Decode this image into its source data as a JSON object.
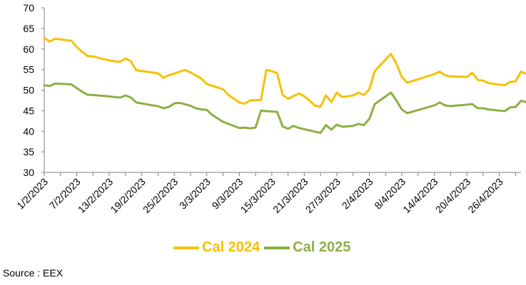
{
  "chart_data": {
    "type": "line",
    "title": "",
    "xlabel": "",
    "ylabel": "",
    "ylim": [
      30,
      70
    ],
    "yticks": [
      30,
      35,
      40,
      45,
      50,
      55,
      60,
      65,
      70
    ],
    "grid": false,
    "legend_position": "bottom",
    "x_tick_labels": [
      "1/2/2023",
      "7/2/2023",
      "13/2/2023",
      "19/2/2023",
      "25/2/2023",
      "3/3/2023",
      "9/3/2023",
      "15/3/2023",
      "21/3/2023",
      "27/3/2023",
      "2/4/2023",
      "8/4/2023",
      "14/4/2023",
      "20/4/2023",
      "26/4/2023"
    ],
    "x_range": [
      "2023-02-01",
      "2023-04-30"
    ],
    "series": [
      {
        "name": "Cal 2024",
        "color": "#F5C200",
        "points": [
          [
            "2023-02-01",
            62.7
          ],
          [
            "2023-02-02",
            61.8
          ],
          [
            "2023-02-03",
            62.5
          ],
          [
            "2023-02-06",
            62.0
          ],
          [
            "2023-02-07",
            60.5
          ],
          [
            "2023-02-08",
            59.3
          ],
          [
            "2023-02-09",
            58.3
          ],
          [
            "2023-02-10",
            58.2
          ],
          [
            "2023-02-13",
            57.2
          ],
          [
            "2023-02-14",
            57.0
          ],
          [
            "2023-02-15",
            56.9
          ],
          [
            "2023-02-16",
            57.7
          ],
          [
            "2023-02-17",
            57.0
          ],
          [
            "2023-02-18",
            54.8
          ],
          [
            "2023-02-21",
            54.3
          ],
          [
            "2023-02-22",
            54.1
          ],
          [
            "2023-02-23",
            53.0
          ],
          [
            "2023-02-24",
            53.6
          ],
          [
            "2023-02-27",
            54.9
          ],
          [
            "2023-02-28",
            54.3
          ],
          [
            "2023-03-01",
            53.6
          ],
          [
            "2023-03-02",
            52.8
          ],
          [
            "2023-03-03",
            51.5
          ],
          [
            "2023-03-06",
            50.2
          ],
          [
            "2023-03-07",
            48.8
          ],
          [
            "2023-03-09",
            47.0
          ],
          [
            "2023-03-10",
            46.7
          ],
          [
            "2023-03-11",
            47.5
          ],
          [
            "2023-03-13",
            47.6
          ],
          [
            "2023-03-14",
            54.9
          ],
          [
            "2023-03-15",
            54.6
          ],
          [
            "2023-03-16",
            54.1
          ],
          [
            "2023-03-17",
            48.8
          ],
          [
            "2023-03-18",
            47.9
          ],
          [
            "2023-03-20",
            49.2
          ],
          [
            "2023-03-21",
            48.5
          ],
          [
            "2023-03-22",
            47.4
          ],
          [
            "2023-03-23",
            46.2
          ],
          [
            "2023-03-24",
            46.0
          ],
          [
            "2023-03-25",
            48.7
          ],
          [
            "2023-03-26",
            47.1
          ],
          [
            "2023-03-27",
            49.4
          ],
          [
            "2023-03-28",
            48.3
          ],
          [
            "2023-03-30",
            48.7
          ],
          [
            "2023-03-31",
            49.4
          ],
          [
            "2023-04-01",
            48.8
          ],
          [
            "2023-04-02",
            50.2
          ],
          [
            "2023-04-03",
            54.6
          ],
          [
            "2023-04-06",
            58.8
          ],
          [
            "2023-04-07",
            56.5
          ],
          [
            "2023-04-08",
            53.2
          ],
          [
            "2023-04-09",
            51.8
          ],
          [
            "2023-04-14",
            53.9
          ],
          [
            "2023-04-15",
            54.5
          ],
          [
            "2023-04-16",
            53.6
          ],
          [
            "2023-04-17",
            53.3
          ],
          [
            "2023-04-18",
            53.3
          ],
          [
            "2023-04-20",
            53.2
          ],
          [
            "2023-04-21",
            54.2
          ],
          [
            "2023-04-22",
            52.5
          ],
          [
            "2023-04-23",
            52.3
          ],
          [
            "2023-04-24",
            51.7
          ],
          [
            "2023-04-27",
            51.2
          ],
          [
            "2023-04-28",
            52.0
          ],
          [
            "2023-04-29",
            52.1
          ],
          [
            "2023-04-30",
            54.5
          ],
          [
            "2023-04-31",
            53.9
          ]
        ]
      },
      {
        "name": "Cal 2025",
        "color": "#8CB043",
        "points": [
          [
            "2023-02-01",
            51.2
          ],
          [
            "2023-02-02",
            51.0
          ],
          [
            "2023-02-03",
            51.6
          ],
          [
            "2023-02-06",
            51.4
          ],
          [
            "2023-02-07",
            50.5
          ],
          [
            "2023-02-08",
            49.6
          ],
          [
            "2023-02-09",
            48.9
          ],
          [
            "2023-02-10",
            48.8
          ],
          [
            "2023-02-13",
            48.5
          ],
          [
            "2023-02-14",
            48.3
          ],
          [
            "2023-02-15",
            48.2
          ],
          [
            "2023-02-16",
            48.7
          ],
          [
            "2023-02-17",
            48.2
          ],
          [
            "2023-02-18",
            47.0
          ],
          [
            "2023-02-21",
            46.3
          ],
          [
            "2023-02-22",
            46.1
          ],
          [
            "2023-02-23",
            45.6
          ],
          [
            "2023-02-24",
            45.9
          ],
          [
            "2023-02-25",
            46.8
          ],
          [
            "2023-02-26",
            46.9
          ],
          [
            "2023-02-28",
            46.2
          ],
          [
            "2023-03-01",
            45.6
          ],
          [
            "2023-03-02",
            45.3
          ],
          [
            "2023-03-03",
            45.2
          ],
          [
            "2023-03-04",
            44.0
          ],
          [
            "2023-03-06",
            42.3
          ],
          [
            "2023-03-09",
            40.8
          ],
          [
            "2023-03-10",
            40.9
          ],
          [
            "2023-03-11",
            40.7
          ],
          [
            "2023-03-12",
            40.9
          ],
          [
            "2023-03-13",
            45.0
          ],
          [
            "2023-03-16",
            44.7
          ],
          [
            "2023-03-17",
            41.2
          ],
          [
            "2023-03-18",
            40.6
          ],
          [
            "2023-03-19",
            41.3
          ],
          [
            "2023-03-20",
            40.8
          ],
          [
            "2023-03-22",
            40.2
          ],
          [
            "2023-03-24",
            39.6
          ],
          [
            "2023-03-25",
            41.5
          ],
          [
            "2023-03-26",
            40.4
          ],
          [
            "2023-03-27",
            41.6
          ],
          [
            "2023-03-28",
            41.1
          ],
          [
            "2023-03-30",
            41.3
          ],
          [
            "2023-03-31",
            41.8
          ],
          [
            "2023-04-01",
            41.5
          ],
          [
            "2023-04-02",
            43.0
          ],
          [
            "2023-04-03",
            46.6
          ],
          [
            "2023-04-06",
            49.4
          ],
          [
            "2023-04-07",
            47.5
          ],
          [
            "2023-04-08",
            45.3
          ],
          [
            "2023-04-09",
            44.4
          ],
          [
            "2023-04-14",
            46.3
          ],
          [
            "2023-04-15",
            47.0
          ],
          [
            "2023-04-16",
            46.3
          ],
          [
            "2023-04-17",
            46.1
          ],
          [
            "2023-04-21",
            46.6
          ],
          [
            "2023-04-22",
            45.6
          ],
          [
            "2023-04-23",
            45.6
          ],
          [
            "2023-04-24",
            45.3
          ],
          [
            "2023-04-27",
            44.9
          ],
          [
            "2023-04-28",
            45.8
          ],
          [
            "2023-04-29",
            45.9
          ],
          [
            "2023-04-30",
            47.4
          ],
          [
            "2023-04-31",
            47.1
          ]
        ]
      }
    ]
  },
  "legend": {
    "items": [
      {
        "label": "Cal 2024",
        "color": "#F5C200"
      },
      {
        "label": "Cal 2025",
        "color": "#8CB043"
      }
    ]
  },
  "source": "Source : EEX",
  "colors": {
    "axis": "#808080",
    "text": "#000000"
  }
}
